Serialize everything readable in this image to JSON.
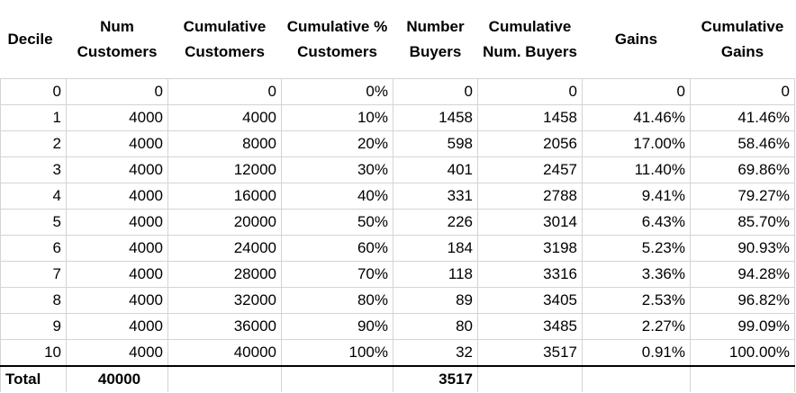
{
  "headers": [
    "Decile",
    "Num Customers",
    "Cumulative Customers",
    "Cumulative % Customers",
    "Number Buyers",
    "Cumulative Num. Buyers",
    "Gains",
    "Cumulative Gains"
  ],
  "rows": [
    [
      "0",
      "0",
      "0",
      "0%",
      "0",
      "0",
      "0",
      "0"
    ],
    [
      "1",
      "4000",
      "4000",
      "10%",
      "1458",
      "1458",
      "41.46%",
      "41.46%"
    ],
    [
      "2",
      "4000",
      "8000",
      "20%",
      "598",
      "2056",
      "17.00%",
      "58.46%"
    ],
    [
      "3",
      "4000",
      "12000",
      "30%",
      "401",
      "2457",
      "11.40%",
      "69.86%"
    ],
    [
      "4",
      "4000",
      "16000",
      "40%",
      "331",
      "2788",
      "9.41%",
      "79.27%"
    ],
    [
      "5",
      "4000",
      "20000",
      "50%",
      "226",
      "3014",
      "6.43%",
      "85.70%"
    ],
    [
      "6",
      "4000",
      "24000",
      "60%",
      "184",
      "3198",
      "5.23%",
      "90.93%"
    ],
    [
      "7",
      "4000",
      "28000",
      "70%",
      "118",
      "3316",
      "3.36%",
      "94.28%"
    ],
    [
      "8",
      "4000",
      "32000",
      "80%",
      "89",
      "3405",
      "2.53%",
      "96.82%"
    ],
    [
      "9",
      "4000",
      "36000",
      "90%",
      "80",
      "3485",
      "2.27%",
      "99.09%"
    ],
    [
      "10",
      "4000",
      "40000",
      "100%",
      "32",
      "3517",
      "0.91%",
      "100.00%"
    ]
  ],
  "total": {
    "label": "Total",
    "num_customers": "40000",
    "number_buyers": "3517"
  }
}
